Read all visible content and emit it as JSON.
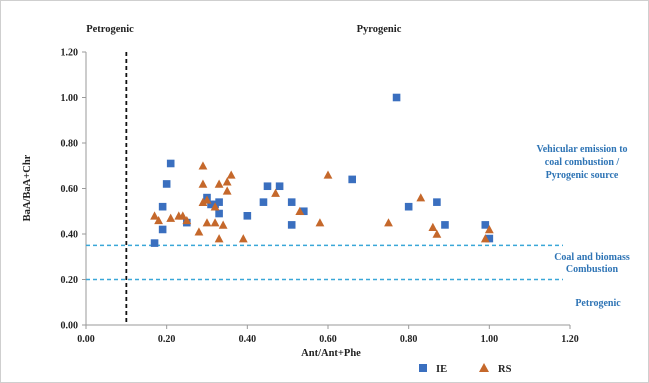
{
  "chart_data": {
    "type": "scatter",
    "xlabel": "Ant/Ant+Phe",
    "ylabel": "BaA/BaA+Chr",
    "xlim": [
      0,
      1.2
    ],
    "ylim": [
      0,
      1.2
    ],
    "x_ticks": [
      "0.00",
      "0.20",
      "0.40",
      "0.60",
      "0.80",
      "1.00",
      "1.20"
    ],
    "y_ticks": [
      "0.00",
      "0.20",
      "0.40",
      "0.60",
      "0.80",
      "1.00",
      "1.20"
    ],
    "grid": false,
    "legend_position": "bottom",
    "region_labels": {
      "petrogenic_top": "Petrogenic",
      "pyrogenic_top": "Pyrogenic",
      "vehicular": [
        "Vehicular emission to",
        "coal combustion  /",
        "Pyrogenic source"
      ],
      "coal": [
        "Coal and biomass",
        "Combustion"
      ],
      "petrogenic_bottom": "Petrogenic"
    },
    "reference_lines": {
      "vertical_x": 0.1,
      "horizontal_y": [
        0.35,
        0.2
      ]
    },
    "colors": {
      "IE": "#3a6fbf",
      "RS": "#c5682b",
      "reference_h": "#3aa7d8",
      "reference_v": "#111111"
    },
    "series": [
      {
        "name": "IE",
        "marker": "square",
        "points": [
          [
            0.17,
            0.36
          ],
          [
            0.19,
            0.42
          ],
          [
            0.19,
            0.52
          ],
          [
            0.2,
            0.62
          ],
          [
            0.21,
            0.71
          ],
          [
            0.25,
            0.45
          ],
          [
            0.3,
            0.56
          ],
          [
            0.31,
            0.53
          ],
          [
            0.32,
            0.53
          ],
          [
            0.33,
            0.54
          ],
          [
            0.33,
            0.49
          ],
          [
            0.4,
            0.48
          ],
          [
            0.44,
            0.54
          ],
          [
            0.45,
            0.61
          ],
          [
            0.48,
            0.61
          ],
          [
            0.51,
            0.54
          ],
          [
            0.51,
            0.44
          ],
          [
            0.54,
            0.5
          ],
          [
            0.66,
            0.64
          ],
          [
            0.77,
            1.0
          ],
          [
            0.8,
            0.52
          ],
          [
            0.87,
            0.54
          ],
          [
            0.89,
            0.44
          ],
          [
            0.99,
            0.44
          ],
          [
            1.0,
            0.38
          ]
        ]
      },
      {
        "name": "RS",
        "marker": "triangle",
        "points": [
          [
            0.17,
            0.48
          ],
          [
            0.18,
            0.46
          ],
          [
            0.21,
            0.47
          ],
          [
            0.23,
            0.48
          ],
          [
            0.24,
            0.48
          ],
          [
            0.25,
            0.46
          ],
          [
            0.28,
            0.41
          ],
          [
            0.29,
            0.7
          ],
          [
            0.29,
            0.54
          ],
          [
            0.29,
            0.62
          ],
          [
            0.3,
            0.45
          ],
          [
            0.3,
            0.55
          ],
          [
            0.32,
            0.52
          ],
          [
            0.32,
            0.45
          ],
          [
            0.33,
            0.62
          ],
          [
            0.33,
            0.38
          ],
          [
            0.34,
            0.44
          ],
          [
            0.35,
            0.59
          ],
          [
            0.35,
            0.63
          ],
          [
            0.36,
            0.66
          ],
          [
            0.39,
            0.38
          ],
          [
            0.47,
            0.58
          ],
          [
            0.53,
            0.5
          ],
          [
            0.58,
            0.45
          ],
          [
            0.6,
            0.66
          ],
          [
            0.75,
            0.45
          ],
          [
            0.83,
            0.56
          ],
          [
            0.86,
            0.43
          ],
          [
            0.87,
            0.4
          ],
          [
            0.99,
            0.38
          ],
          [
            1.0,
            0.42
          ]
        ]
      }
    ]
  }
}
